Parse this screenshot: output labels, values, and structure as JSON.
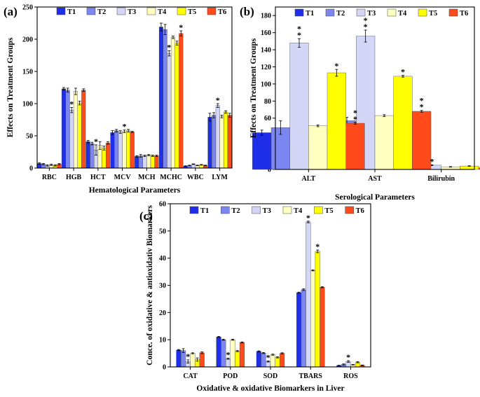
{
  "series_names": [
    "T1",
    "T2",
    "T3",
    "T4",
    "T5",
    "T6"
  ],
  "colors": [
    "#1f2ee8",
    "#7b86f0",
    "#d3d6f7",
    "#ffffc0",
    "#ffff00",
    "#ff4a1c"
  ],
  "chart_data": [
    {
      "id": "a",
      "panel_label": "(a)",
      "type": "bar",
      "title": "",
      "xlabel": "Hematological Parameters",
      "ylabel": "Effects on Treatment Groups",
      "ylim": [
        0,
        250
      ],
      "yticks": [
        0,
        50,
        100,
        150,
        200,
        250
      ],
      "categories": [
        "RBC",
        "HGB",
        "HCT",
        "MCV",
        "MCH",
        "MCHC",
        "WBC",
        "LYM"
      ],
      "legend_position": "top-right",
      "series": [
        {
          "name": "T1",
          "values": [
            7,
            123,
            41,
            55,
            18,
            219,
            3,
            79
          ],
          "errors": [
            1,
            2,
            2,
            3,
            1,
            6,
            0.5,
            6
          ]
        },
        {
          "name": "T2",
          "values": [
            6,
            121,
            38,
            58,
            19,
            215,
            4,
            82
          ],
          "errors": [
            1,
            3,
            2,
            2,
            2,
            8,
            0.5,
            4
          ]
        },
        {
          "name": "T3",
          "values": [
            4,
            90,
            28,
            56,
            19,
            178,
            6,
            97
          ],
          "errors": [
            1,
            4,
            8,
            2,
            1,
            4,
            0.5,
            3
          ]
        },
        {
          "name": "T4",
          "values": [
            5,
            119,
            35,
            57,
            20,
            203,
            4,
            80
          ],
          "errors": [
            1,
            5,
            6,
            2,
            1,
            2,
            0.5,
            2
          ]
        },
        {
          "name": "T5",
          "values": [
            4,
            101,
            31,
            58,
            19,
            194,
            5,
            87
          ],
          "errors": [
            1,
            3,
            3,
            2,
            1,
            3,
            0.5,
            2
          ]
        },
        {
          "name": "T6",
          "values": [
            6,
            121,
            39,
            56,
            19,
            209,
            4,
            82
          ],
          "errors": [
            1,
            2,
            2,
            1,
            1,
            4,
            0.5,
            3
          ]
        }
      ],
      "annotations": [
        {
          "category": "HGB",
          "series": "T3",
          "text": "*"
        },
        {
          "category": "HCT",
          "series": "T3",
          "text": "*"
        },
        {
          "category": "MCV",
          "series": "T4",
          "text": "*"
        },
        {
          "category": "MCHC",
          "series": "T3",
          "text": "*"
        },
        {
          "category": "MCHC",
          "series": "T6",
          "text": "*"
        },
        {
          "category": "LYM",
          "series": "T3",
          "text": "*"
        }
      ]
    },
    {
      "id": "b",
      "panel_label": "(b)",
      "type": "bar",
      "title": "",
      "xlabel": "Serological Parameters",
      "ylabel": "Effects on Treatment Groups",
      "ylim": [
        0,
        190
      ],
      "yticks": [
        0,
        20,
        40,
        60,
        80,
        100,
        120,
        140,
        160,
        180
      ],
      "categories": [
        "ALT",
        "AST",
        "Bilirubin"
      ],
      "legend_position": "top-right",
      "series": [
        {
          "name": "T1",
          "values": [
            43,
            48,
            2
          ],
          "errors": [
            3,
            1,
            0.3
          ]
        },
        {
          "name": "T2",
          "values": [
            49,
            57,
            2
          ],
          "errors": [
            8,
            4,
            0.3
          ]
        },
        {
          "name": "T3",
          "values": [
            148,
            156,
            5
          ],
          "errors": [
            5,
            7,
            0.5
          ]
        },
        {
          "name": "T4",
          "values": [
            51,
            63,
            3
          ],
          "errors": [
            1,
            1,
            0.3
          ]
        },
        {
          "name": "T5",
          "values": [
            113,
            109,
            4
          ],
          "errors": [
            4,
            1,
            0.3
          ]
        },
        {
          "name": "T6",
          "values": [
            54,
            68,
            2
          ],
          "errors": [
            1,
            1,
            0.3
          ]
        }
      ],
      "annotations": [
        {
          "category": "ALT",
          "series": "T3",
          "text": "**"
        },
        {
          "category": "ALT",
          "series": "T5",
          "text": "*"
        },
        {
          "category": "ALT",
          "series": "T6",
          "text": "**"
        },
        {
          "category": "AST",
          "series": "T3",
          "text": "**"
        },
        {
          "category": "AST",
          "series": "T5",
          "text": "*"
        },
        {
          "category": "AST",
          "series": "T6",
          "text": "**"
        },
        {
          "category": "Bilirubin",
          "series": "T3",
          "text": "*"
        }
      ]
    },
    {
      "id": "c",
      "panel_label": "(c)",
      "type": "bar",
      "title": "",
      "xlabel": "Oxidative & oxidative Biomarkers in Liver",
      "ylabel": "Conce. of oxidative & antioxidativ Biomarkers",
      "ylim": [
        0,
        60
      ],
      "yticks": [
        0,
        10,
        20,
        30,
        40,
        50,
        60
      ],
      "categories": [
        "CAT",
        "POD",
        "SOD",
        "TBARS",
        "ROS"
      ],
      "legend_position": "top",
      "series": [
        {
          "name": "T1",
          "values": [
            6.2,
            11,
            5.7,
            27.3,
            0.5
          ],
          "errors": [
            0.2,
            0.2,
            0.2,
            0.2,
            0.1
          ]
        },
        {
          "name": "T2",
          "values": [
            6.0,
            10,
            5.1,
            28.4,
            0.9
          ],
          "errors": [
            0.7,
            0.2,
            0.2,
            0.3,
            0.2
          ]
        },
        {
          "name": "T3",
          "values": [
            2.0,
            3,
            2.0,
            53.3,
            2.0
          ],
          "errors": [
            0.6,
            0.2,
            0.2,
            0.3,
            0.3
          ]
        },
        {
          "name": "T4",
          "values": [
            5.0,
            10,
            4.5,
            35.5,
            0.8
          ],
          "errors": [
            0.2,
            0.2,
            0.2,
            0.2,
            0.1
          ]
        },
        {
          "name": "T5",
          "values": [
            2.7,
            5.8,
            3.5,
            42.5,
            1.7
          ],
          "errors": [
            0.6,
            0.2,
            0.2,
            0.5,
            0.2
          ]
        },
        {
          "name": "T6",
          "values": [
            5.2,
            9,
            5.0,
            29.3,
            0.6
          ],
          "errors": [
            0.3,
            0.2,
            0.2,
            0.2,
            0.1
          ]
        }
      ],
      "annotations": [
        {
          "category": "CAT",
          "series": "T3",
          "text": "*"
        },
        {
          "category": "POD",
          "series": "T3",
          "text": "*"
        },
        {
          "category": "SOD",
          "series": "T3",
          "text": "*"
        },
        {
          "category": "TBARS",
          "series": "T3",
          "text": "*"
        },
        {
          "category": "TBARS",
          "series": "T5",
          "text": "*"
        },
        {
          "category": "ROS",
          "series": "T3",
          "text": "*"
        }
      ]
    }
  ]
}
